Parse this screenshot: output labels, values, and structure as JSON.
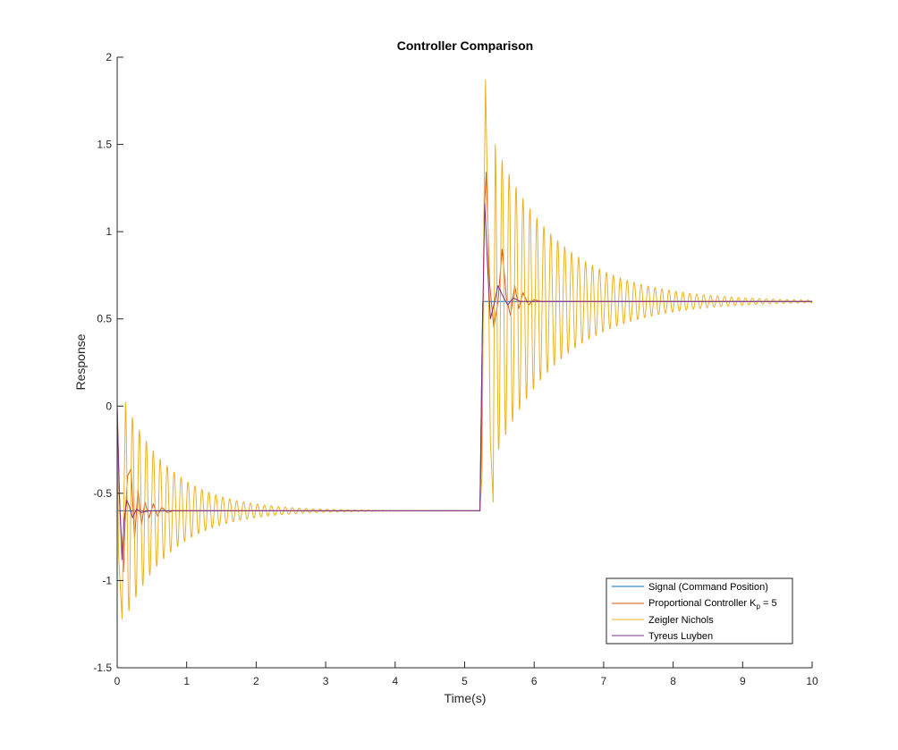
{
  "chart_data": {
    "type": "line",
    "title": "Controller Comparison",
    "xlabel": "Time(s)",
    "ylabel": "Response",
    "xlim": [
      0,
      10
    ],
    "ylim": [
      -1.5,
      2
    ],
    "xticks": [
      "0",
      "1",
      "2",
      "3",
      "4",
      "5",
      "6",
      "7",
      "8",
      "9",
      "10"
    ],
    "yticks": [
      "-1.5",
      "-1",
      "-0.5",
      "0",
      "0.5",
      "1",
      "1.5",
      "2"
    ],
    "grid": false,
    "legend_position": "bottom-right",
    "legend": {
      "signal": "Signal (Command Position)",
      "proportional_prefix": "Proportional Controller K",
      "proportional_subscript": "p",
      "proportional_suffix": " = 5",
      "zn": "Zeigler Nichols",
      "tl": "Tyreus Luyben"
    },
    "series": [
      {
        "key": "signal",
        "color": "#0072BD",
        "x": [
          0,
          5.22,
          5.26,
          10
        ],
        "y": [
          -0.6,
          -0.6,
          0.6,
          0.6
        ]
      },
      {
        "key": "proportional",
        "color": "#D95319",
        "x": [
          0,
          0.04,
          0.09,
          0.12,
          0.15,
          0.2,
          0.25,
          0.3,
          0.35,
          0.4,
          0.46,
          0.52,
          0.58,
          0.64,
          0.72,
          0.8,
          1.0,
          1.5,
          5.22,
          5.25,
          5.28,
          5.31,
          5.36,
          5.42,
          5.48,
          5.54,
          5.6,
          5.66,
          5.72,
          5.78,
          5.84,
          5.92,
          6.0,
          6.1,
          6.2,
          6.5,
          7.0,
          10
        ],
        "y": [
          0,
          -0.6,
          -0.95,
          -0.6,
          -0.4,
          -0.36,
          -0.76,
          -0.48,
          -0.68,
          -0.55,
          -0.64,
          -0.56,
          -0.63,
          -0.58,
          -0.61,
          -0.6,
          -0.6,
          -0.6,
          -0.6,
          -0.1,
          1.1,
          1.34,
          0.7,
          0.45,
          0.6,
          0.9,
          0.62,
          0.52,
          0.69,
          0.56,
          0.65,
          0.58,
          0.61,
          0.6,
          0.6,
          0.6,
          0.6,
          0.6
        ]
      },
      {
        "key": "zn",
        "color": "#EDB120",
        "x": [
          0,
          0.02,
          0.07,
          0.14,
          0.22,
          0.3,
          0.5,
          1.0,
          2.0,
          3.0,
          3.6,
          5.22,
          5.25,
          5.28,
          5.3,
          5.33,
          5.37,
          5.41,
          5.45,
          5.5,
          5.6,
          5.8,
          6.2,
          7.0,
          8.0,
          9.0,
          10
        ],
        "y": [
          0,
          -0.85,
          -1.22,
          -0.06,
          -1.1,
          -0.15,
          -0.6,
          -0.6,
          -0.6,
          -0.6,
          -0.6,
          -0.6,
          -0.4,
          1.2,
          1.87,
          1.2,
          -0.2,
          -0.55,
          1.3,
          0.2,
          0.6,
          0.6,
          0.6,
          0.6,
          0.6,
          0.6,
          0.6
        ],
        "oscillation": {
          "segments": [
            {
              "t_start": 0.12,
              "t_end": 5.22,
              "center": -0.6,
              "amp0": 0.62,
              "tau": 0.68,
              "period": 0.1
            },
            {
              "t_start": 5.44,
              "t_end": 10,
              "center": 0.6,
              "amp0": 0.9,
              "tau": 0.95,
              "period": 0.1
            }
          ]
        }
      },
      {
        "key": "tl",
        "color": "#7E2F8E",
        "x": [
          0,
          0.03,
          0.07,
          0.1,
          0.14,
          0.18,
          0.22,
          0.28,
          0.35,
          0.45,
          0.6,
          1.0,
          5.22,
          5.25,
          5.29,
          5.33,
          5.37,
          5.42,
          5.48,
          5.55,
          5.62,
          5.7,
          5.8,
          6.0,
          7.0,
          10
        ],
        "y": [
          0,
          -0.5,
          -0.88,
          -0.65,
          -0.54,
          -0.58,
          -0.64,
          -0.59,
          -0.61,
          -0.6,
          -0.6,
          -0.6,
          -0.6,
          0.3,
          1.16,
          0.8,
          0.5,
          0.58,
          0.69,
          0.63,
          0.58,
          0.62,
          0.6,
          0.6,
          0.6,
          0.6
        ]
      }
    ]
  }
}
